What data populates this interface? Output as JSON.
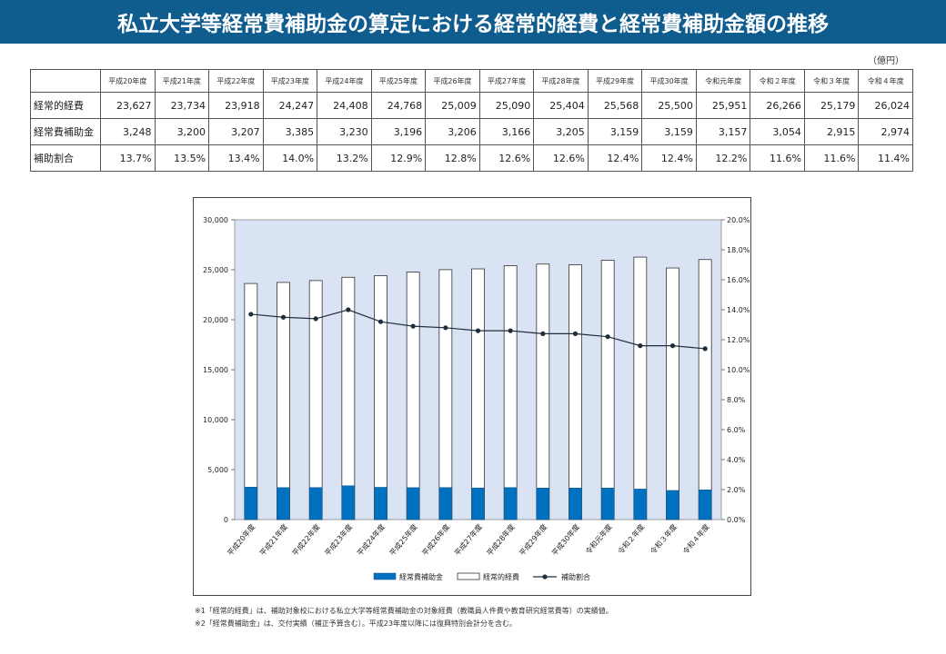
{
  "title": "私立大学等経常費補助金の算定における経常的経費と経常費補助金額の推移",
  "unit": "（億円）",
  "table": {
    "headers": [
      "平成20年度",
      "平成21年度",
      "平成22年度",
      "平成23年度",
      "平成24年度",
      "平成25年度",
      "平成26年度",
      "平成27年度",
      "平成28年度",
      "平成29年度",
      "平成30年度",
      "令和元年度",
      "令和２年度",
      "令和３年度",
      "令和４年度"
    ],
    "rows": [
      {
        "label": "経常的経費",
        "values": [
          "23,627",
          "23,734",
          "23,918",
          "24,247",
          "24,408",
          "24,768",
          "25,009",
          "25,090",
          "25,404",
          "25,568",
          "25,500",
          "25,951",
          "26,266",
          "25,179",
          "26,024"
        ]
      },
      {
        "label": "経常費補助金",
        "values": [
          "3,248",
          "3,200",
          "3,207",
          "3,385",
          "3,230",
          "3,196",
          "3,206",
          "3,166",
          "3,205",
          "3,159",
          "3,159",
          "3,157",
          "3,054",
          "2,915",
          "2,974"
        ]
      },
      {
        "label": "補助割合",
        "values": [
          "13.7%",
          "13.5%",
          "13.4%",
          "14.0%",
          "13.2%",
          "12.9%",
          "12.8%",
          "12.6%",
          "12.6%",
          "12.4%",
          "12.4%",
          "12.2%",
          "11.6%",
          "11.6%",
          "11.4%"
        ]
      }
    ]
  },
  "chart_data": {
    "type": "bar",
    "categories": [
      "平成20年度",
      "平成21年度",
      "平成22年度",
      "平成23年度",
      "平成24年度",
      "平成25年度",
      "平成26年度",
      "平成27年度",
      "平成28年度",
      "平成29年度",
      "平成30年度",
      "令和元年度",
      "令和２年度",
      "令和３年度",
      "令和４年度"
    ],
    "series": [
      {
        "name": "経常費補助金",
        "kind": "bar",
        "axis": "left",
        "color": "#0070c0",
        "values": [
          3248,
          3200,
          3207,
          3385,
          3230,
          3196,
          3206,
          3166,
          3205,
          3159,
          3159,
          3157,
          3054,
          2915,
          2974
        ]
      },
      {
        "name": "経常的経費",
        "kind": "bar",
        "axis": "left",
        "color": "#ffffff",
        "values": [
          23627,
          23734,
          23918,
          24247,
          24408,
          24768,
          25009,
          25090,
          25404,
          25568,
          25500,
          25951,
          26266,
          25179,
          26024
        ]
      },
      {
        "name": "補助割合",
        "kind": "line",
        "axis": "right",
        "color": "#1f2d3d",
        "values": [
          13.7,
          13.5,
          13.4,
          14.0,
          13.2,
          12.9,
          12.8,
          12.6,
          12.6,
          12.4,
          12.4,
          12.2,
          11.6,
          11.6,
          11.4
        ]
      }
    ],
    "ylim": [
      0,
      30000
    ],
    "y2lim": [
      0,
      20
    ],
    "yticks": [
      "0",
      "5,000",
      "10,000",
      "15,000",
      "20,000",
      "25,000",
      "30,000"
    ],
    "y2ticks": [
      "0.0%",
      "2.0%",
      "4.0%",
      "6.0%",
      "8.0%",
      "10.0%",
      "12.0%",
      "14.0%",
      "16.0%",
      "18.0%",
      "20.0%"
    ],
    "plot_background": "#dae3f3",
    "legend_position": "bottom"
  },
  "notes": [
    "※1「経常的経費」は、補助対象校における私立大学等経常費補助金の対象経費（教職員人件費や教育研究経常費等）の実績値。",
    "※2「経常費補助金」は、交付実績（補正予算含む）。平成23年度以降には復興特別会計分を含む。"
  ]
}
